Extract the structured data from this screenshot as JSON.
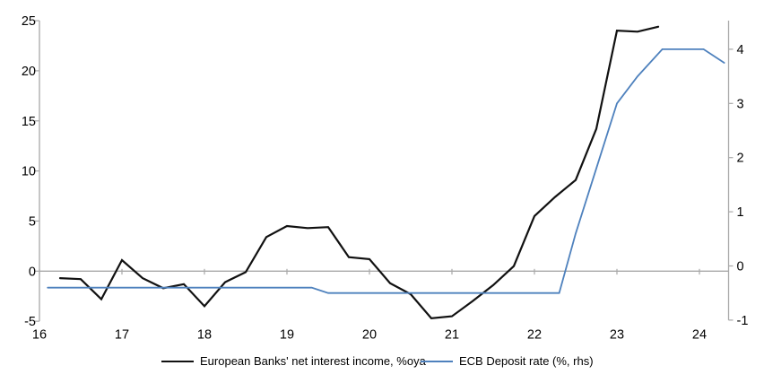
{
  "chart_data": {
    "type": "line",
    "title": "",
    "xlabel": "",
    "ylabel_left": "",
    "ylabel_right": "",
    "grid": "zero-line-only",
    "legend_position": "bottom",
    "x_axis": {
      "ticks": [
        16,
        17,
        18,
        19,
        20,
        21,
        22,
        23,
        24
      ],
      "min": 16,
      "max": 24.35
    },
    "left_axis": {
      "ticks": [
        -5,
        0,
        5,
        10,
        15,
        20,
        25
      ],
      "min": -5,
      "max": 25
    },
    "right_axis": {
      "ticks": [
        -1,
        0,
        1,
        2,
        3,
        4
      ],
      "min": -1,
      "max": 4.5
    },
    "series": [
      {
        "name": "European Banks' net interest income, %oya",
        "axis": "left",
        "color": "#111111",
        "width": 2.2,
        "points": [
          [
            16.25,
            -0.7
          ],
          [
            16.5,
            -0.8
          ],
          [
            16.75,
            -2.8
          ],
          [
            17.0,
            1.1
          ],
          [
            17.25,
            -0.7
          ],
          [
            17.5,
            -1.7
          ],
          [
            17.75,
            -1.3
          ],
          [
            18.0,
            -3.5
          ],
          [
            18.25,
            -1.1
          ],
          [
            18.5,
            -0.1
          ],
          [
            18.75,
            3.4
          ],
          [
            19.0,
            4.5
          ],
          [
            19.25,
            4.3
          ],
          [
            19.5,
            4.4
          ],
          [
            19.75,
            1.4
          ],
          [
            20.0,
            1.2
          ],
          [
            20.25,
            -1.2
          ],
          [
            20.5,
            -2.3
          ],
          [
            20.75,
            -4.7
          ],
          [
            21.0,
            -4.5
          ],
          [
            21.25,
            -3.0
          ],
          [
            21.5,
            -1.4
          ],
          [
            21.75,
            0.5
          ],
          [
            22.0,
            5.5
          ],
          [
            22.25,
            7.4
          ],
          [
            22.5,
            9.1
          ],
          [
            22.75,
            14.2
          ],
          [
            23.0,
            24.0
          ],
          [
            23.25,
            23.9
          ],
          [
            23.5,
            24.4
          ]
        ]
      },
      {
        "name": "ECB Deposit rate (%, rhs)",
        "axis": "right",
        "color": "#4e81bd",
        "width": 1.8,
        "points": [
          [
            16.1,
            -0.4
          ],
          [
            19.3,
            -0.4
          ],
          [
            19.5,
            -0.5
          ],
          [
            22.3,
            -0.5
          ],
          [
            22.5,
            0.6
          ],
          [
            22.75,
            1.8
          ],
          [
            23.0,
            3.0
          ],
          [
            23.25,
            3.5
          ],
          [
            23.55,
            4.0
          ],
          [
            24.05,
            4.0
          ],
          [
            24.3,
            3.75
          ]
        ]
      }
    ],
    "legend": [
      {
        "label": "European Banks' net interest income, %oya",
        "color": "#111111"
      },
      {
        "label": "ECB Deposit rate (%, rhs)",
        "color": "#4e81bd"
      }
    ],
    "colors": {
      "axis": "#a8a8a8",
      "zero_line": "#a8a8a8",
      "tick_text": "#000000",
      "background": "#ffffff"
    }
  }
}
